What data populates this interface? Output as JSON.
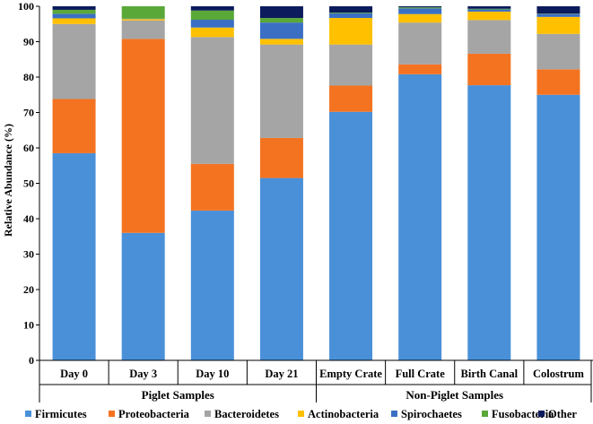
{
  "chart_data": {
    "type": "bar",
    "stacked": true,
    "title": "",
    "xlabel": "",
    "ylabel": "Relative Abundance (%)",
    "ylim": [
      0,
      100
    ],
    "yticks": [
      0,
      10,
      20,
      30,
      40,
      50,
      60,
      70,
      80,
      90,
      100
    ],
    "categories": [
      "Day 0",
      "Day 3",
      "Day 10",
      "Day 21",
      "Empty Crate",
      "Full Crate",
      "Birth Canal",
      "Colostrum"
    ],
    "groups": [
      {
        "label": "Piglet Samples",
        "categories": [
          "Day 0",
          "Day 3",
          "Day 10",
          "Day 21"
        ]
      },
      {
        "label": "Non-Piglet Samples",
        "categories": [
          "Empty Crate",
          "Full Crate",
          "Birth Canal",
          "Colostrum"
        ]
      }
    ],
    "series": [
      {
        "name": "Firmicutes",
        "color": "#4a90d9",
        "values": [
          58.5,
          36.0,
          42.3,
          51.5,
          70.2,
          80.8,
          77.7,
          75.0
        ]
      },
      {
        "name": "Proteobacteria",
        "color": "#f47321",
        "values": [
          15.3,
          54.8,
          13.2,
          11.3,
          7.4,
          2.8,
          8.9,
          7.2
        ]
      },
      {
        "name": "Bacteroidetes",
        "color": "#a5a5a5",
        "values": [
          21.2,
          5.2,
          35.8,
          26.4,
          11.6,
          11.8,
          9.5,
          10.0
        ]
      },
      {
        "name": "Actinobacteria",
        "color": "#ffc000",
        "values": [
          1.6,
          0.4,
          2.7,
          1.6,
          7.5,
          2.4,
          2.4,
          4.8
        ]
      },
      {
        "name": "Spirochaetes",
        "color": "#3a6fc4",
        "values": [
          1.3,
          0.1,
          2.2,
          4.6,
          1.3,
          1.6,
          0.6,
          0.8
        ]
      },
      {
        "name": "Fusobacteria",
        "color": "#5aa838",
        "values": [
          1.1,
          3.5,
          2.6,
          1.3,
          0.2,
          0.3,
          0.2,
          0.1
        ]
      },
      {
        "name": "Other",
        "color": "#0b1b5c",
        "values": [
          1.0,
          0.0,
          1.2,
          3.3,
          1.8,
          0.3,
          0.7,
          2.1
        ]
      }
    ],
    "legend_position": "bottom",
    "grid": false
  }
}
